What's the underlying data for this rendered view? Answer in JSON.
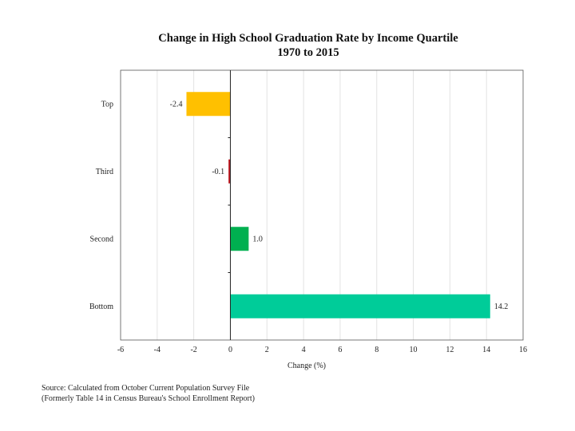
{
  "chart_data": {
    "type": "bar",
    "orientation": "horizontal",
    "title": "Change in High School Graduation  Rate by Income Quartile",
    "subtitle": "1970 to 2015",
    "categories": [
      "Top",
      "Third",
      "Second",
      "Bottom"
    ],
    "values": [
      -2.4,
      -0.1,
      1.0,
      14.2
    ],
    "value_labels": [
      "-2.4",
      "-0.1",
      "1.0",
      "14.2"
    ],
    "colors": [
      "#FFC000",
      "#C0151E",
      "#00B050",
      "#00CC99"
    ],
    "xlabel": "Change (%)",
    "ylabel": "",
    "xlim": [
      -6,
      16
    ],
    "xticks": [
      -6,
      -4,
      -2,
      0,
      2,
      4,
      6,
      8,
      10,
      12,
      14,
      16
    ],
    "grid": true
  },
  "source": {
    "line1": "Source: Calculated from October Current Population Survey File",
    "line2": "(Formerly Table 14 in Census Bureau's School Enrollment Report)"
  }
}
